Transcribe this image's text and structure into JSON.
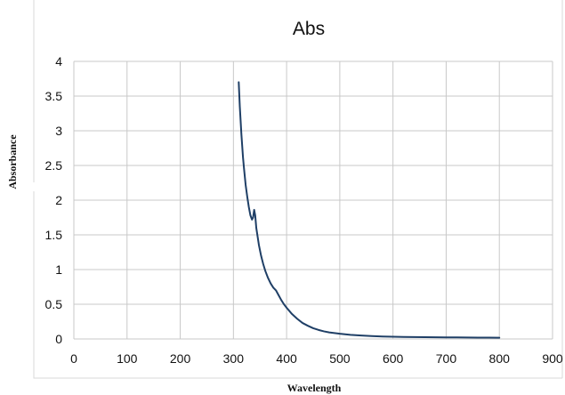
{
  "chart_data": {
    "type": "line",
    "title": "Abs",
    "xlabel": "Wavelength",
    "ylabel": "Absorbance",
    "xlim": [
      0,
      900
    ],
    "ylim": [
      0,
      4
    ],
    "xticks": [
      "0",
      "100",
      "200",
      "300",
      "400",
      "500",
      "600",
      "700",
      "800",
      "900"
    ],
    "yticks": [
      "0",
      "0.5",
      "1",
      "1.5",
      "2",
      "2.5",
      "3",
      "3.5",
      "4"
    ],
    "grid": true,
    "legend": "none",
    "series": [
      {
        "color": "#1f3f66",
        "x": [
          310,
          312,
          315,
          318,
          320,
          323,
          326,
          329,
          332,
          335,
          337,
          339,
          341,
          343,
          345,
          348,
          352,
          356,
          360,
          365,
          370,
          375,
          380,
          385,
          390,
          395,
          400,
          410,
          420,
          430,
          440,
          450,
          460,
          470,
          480,
          490,
          500,
          520,
          540,
          560,
          580,
          600,
          620,
          640,
          660,
          680,
          700,
          720,
          740,
          760,
          780,
          800
        ],
        "y": [
          3.7,
          3.35,
          2.95,
          2.62,
          2.45,
          2.22,
          2.05,
          1.9,
          1.78,
          1.72,
          1.75,
          1.86,
          1.78,
          1.6,
          1.5,
          1.35,
          1.2,
          1.08,
          0.98,
          0.88,
          0.8,
          0.74,
          0.7,
          0.63,
          0.56,
          0.5,
          0.45,
          0.36,
          0.29,
          0.23,
          0.19,
          0.155,
          0.13,
          0.11,
          0.095,
          0.085,
          0.075,
          0.06,
          0.05,
          0.042,
          0.036,
          0.032,
          0.029,
          0.027,
          0.025,
          0.024,
          0.023,
          0.022,
          0.021,
          0.02,
          0.019,
          0.018
        ]
      }
    ]
  }
}
